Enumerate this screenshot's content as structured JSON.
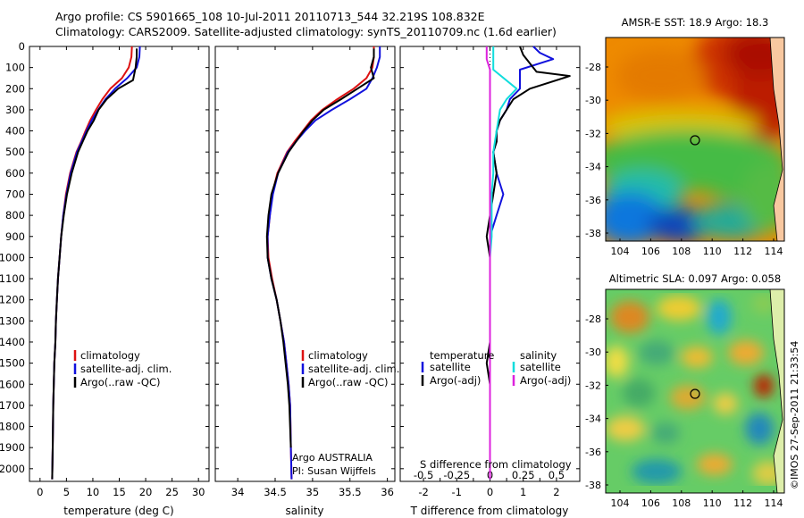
{
  "header": {
    "line1": "Argo profile: CS 5901665_108 10-Jul-2011 20110713_544 32.219S 108.832E",
    "line2": "Climatology: CARS2009. Satellite-adjusted climatology: synTS_20110709.nc (1.6d earlier)"
  },
  "colors": {
    "climatology": "#dd1111",
    "satellite": "#1111dd",
    "argo": "#000000",
    "cyan": "#11dddd",
    "magenta": "#dd22dd"
  },
  "depth_ticks": [
    "0",
    "100",
    "200",
    "300",
    "400",
    "500",
    "600",
    "700",
    "800",
    "900",
    "1000",
    "1100",
    "1200",
    "1300",
    "1400",
    "1500",
    "1600",
    "1700",
    "1800",
    "1900",
    "2000"
  ],
  "chart_data": [
    {
      "type": "line",
      "id": "temperature",
      "xlabel": "temperature (deg C)",
      "xticks": [
        0,
        5,
        10,
        15,
        20,
        25,
        30
      ],
      "xlim": [
        -2,
        32
      ],
      "ylim": [
        2060,
        0
      ],
      "legend": [
        "climatology",
        "satellite-adj. clim.",
        "Argo(..raw -QC)"
      ],
      "series": [
        {
          "name": "climatology",
          "color": "#dd1111",
          "x": [
            17.4,
            17.3,
            16.8,
            15.5,
            13.3,
            11.8,
            10.6,
            9.5,
            8.6,
            7.8,
            6.9,
            5.7,
            4.9,
            4.4,
            4.0,
            3.7,
            3.4,
            3.2,
            3.0,
            2.9,
            2.7,
            2.6,
            2.5,
            2.4,
            2.3
          ],
          "y": [
            0,
            50,
            100,
            150,
            200,
            250,
            300,
            350,
            400,
            450,
            500,
            600,
            700,
            800,
            900,
            1000,
            1100,
            1200,
            1300,
            1400,
            1500,
            1600,
            1700,
            1900,
            2050
          ]
        },
        {
          "name": "satellite-adj. clim.",
          "color": "#1111dd",
          "x": [
            18.9,
            18.8,
            18.3,
            16.5,
            14.2,
            12.4,
            11.0,
            9.8,
            8.8,
            7.9,
            7.0,
            5.8,
            5.0,
            4.4,
            4.0,
            3.7,
            3.4,
            3.2,
            3.0,
            2.9,
            2.7,
            2.6,
            2.5,
            2.4,
            2.3
          ],
          "y": [
            0,
            50,
            100,
            150,
            200,
            250,
            300,
            350,
            400,
            450,
            500,
            600,
            700,
            800,
            900,
            1000,
            1100,
            1200,
            1300,
            1400,
            1500,
            1600,
            1700,
            1900,
            2050
          ]
        },
        {
          "name": "Argo(..raw -QC)",
          "color": "#000000",
          "x": [
            18.3,
            18.3,
            18.1,
            17.6,
            14.8,
            12.6,
            11.1,
            10.2,
            9.0,
            8.1,
            7.2,
            6.0,
            5.1,
            4.5,
            4.0,
            3.7,
            3.4,
            3.2,
            3.0,
            2.9,
            2.7,
            2.6,
            2.5,
            2.4,
            2.3
          ],
          "y": [
            10,
            50,
            100,
            160,
            200,
            250,
            300,
            350,
            400,
            450,
            500,
            600,
            700,
            800,
            900,
            1000,
            1100,
            1200,
            1300,
            1400,
            1500,
            1600,
            1700,
            1900,
            2050
          ]
        }
      ]
    },
    {
      "type": "line",
      "id": "salinity",
      "xlabel": "salinity",
      "xticks": [
        34,
        34.5,
        35,
        35.5,
        36
      ],
      "xlim": [
        33.7,
        36.1
      ],
      "ylim": [
        2060,
        0
      ],
      "legend": [
        "climatology",
        "satellite-adj. clim.",
        "Argo(..raw -QC)"
      ],
      "notes": [
        "Argo AUSTRALIA",
        "PI: Susan Wijffels"
      ],
      "series": [
        {
          "name": "climatology",
          "color": "#dd1111",
          "x": [
            35.82,
            35.82,
            35.8,
            35.72,
            35.55,
            35.33,
            35.13,
            34.98,
            34.87,
            34.76,
            34.66,
            34.53,
            34.46,
            34.43,
            34.4,
            34.41,
            34.46,
            34.52,
            34.57,
            34.62,
            34.65,
            34.68,
            34.7,
            34.71,
            34.72
          ],
          "y": [
            0,
            50,
            100,
            150,
            200,
            250,
            300,
            350,
            400,
            450,
            500,
            600,
            700,
            800,
            900,
            1000,
            1100,
            1200,
            1300,
            1400,
            1500,
            1600,
            1700,
            1900,
            2050
          ]
        },
        {
          "name": "satellite-adj. clim.",
          "color": "#1111dd",
          "x": [
            35.9,
            35.9,
            35.86,
            35.8,
            35.72,
            35.5,
            35.26,
            35.04,
            34.9,
            34.78,
            34.67,
            34.54,
            34.47,
            34.43,
            34.4,
            34.4,
            34.45,
            34.52,
            34.57,
            34.62,
            34.65,
            34.68,
            34.7,
            34.71,
            34.72
          ],
          "y": [
            0,
            50,
            100,
            150,
            200,
            250,
            300,
            350,
            400,
            450,
            500,
            600,
            700,
            800,
            900,
            1000,
            1100,
            1200,
            1300,
            1400,
            1500,
            1600,
            1700,
            1900,
            2050
          ]
        },
        {
          "name": "Argo(..raw -QC)",
          "color": "#000000",
          "x": [
            35.82,
            35.82,
            35.78,
            35.82,
            35.6,
            35.38,
            35.15,
            35.0,
            34.88,
            34.78,
            34.68,
            34.54,
            34.45,
            34.41,
            34.39,
            34.4,
            34.45,
            34.52,
            34.57,
            34.61,
            34.64,
            34.67,
            34.69,
            34.71
          ],
          "y": [
            10,
            50,
            100,
            150,
            200,
            250,
            300,
            350,
            400,
            450,
            500,
            600,
            700,
            800,
            900,
            1000,
            1100,
            1200,
            1300,
            1400,
            1500,
            1600,
            1700,
            1900
          ]
        }
      ]
    },
    {
      "type": "line",
      "id": "difference",
      "xlabel": "T difference from climatology",
      "xlabel_top": "S difference from climatology",
      "xticks": [
        -2,
        -1.5,
        -1,
        -0.5,
        0,
        0.5,
        1,
        1.5,
        2
      ],
      "xticklabels": [
        "-2",
        "",
        "-1",
        "",
        "0",
        "",
        "1",
        "",
        "2"
      ],
      "sticks": [
        -0.5,
        -0.25,
        0,
        0.25,
        0.5
      ],
      "sticklabels": [
        "-0.5",
        "-0.25",
        "0",
        "0.25",
        "0.5"
      ],
      "xlim": [
        -2.7,
        2.7
      ],
      "ylim": [
        2060,
        0
      ],
      "legend_titles": [
        "temperature",
        "salinity"
      ],
      "legend": [
        "satellite",
        "Argo(-adj)",
        "satellite",
        "Argo(-adj)"
      ],
      "series": [
        {
          "name": "satellite",
          "group": "temperature",
          "color": "#1111dd",
          "x": [
            1.3,
            1.5,
            1.9,
            0.9,
            0.9,
            0.6,
            0.5,
            0.3,
            0.2,
            0.2,
            0.1,
            0.2,
            0.4,
            0.2,
            0.0,
            0.0,
            0.0,
            0.0,
            0.0,
            0.0,
            0.0,
            0.0,
            0.0,
            0.0
          ],
          "y": [
            0,
            30,
            60,
            110,
            200,
            250,
            300,
            350,
            400,
            450,
            500,
            600,
            700,
            800,
            900,
            1000,
            1100,
            1200,
            1300,
            1400,
            1500,
            1600,
            1700,
            2050
          ]
        },
        {
          "name": "Argo(-adj)",
          "group": "temperature",
          "color": "#000000",
          "x": [
            0.9,
            1.0,
            1.4,
            2.4,
            1.2,
            0.7,
            0.5,
            0.3,
            0.2,
            0.2,
            0.1,
            0.2,
            0.1,
            0.0,
            -0.1,
            0.0,
            0.0,
            0.0,
            0.0,
            0.0,
            -0.1,
            0.0,
            0.0,
            0.0
          ],
          "y": [
            0,
            40,
            120,
            140,
            200,
            250,
            300,
            350,
            400,
            450,
            500,
            600,
            700,
            800,
            900,
            1000,
            1100,
            1200,
            1300,
            1400,
            1500,
            1600,
            1700,
            2050
          ]
        },
        {
          "name": "satellite",
          "group": "salinity",
          "color": "#11dddd",
          "x": [
            0.1,
            0.1,
            0.1,
            0.8,
            0.5,
            0.3,
            0.2,
            0.1,
            0.1,
            0.05,
            0.05,
            0.05,
            0.0,
            0.0,
            0.0,
            0.0,
            0.0,
            0.0
          ],
          "y": [
            0,
            60,
            110,
            200,
            250,
            300,
            400,
            500,
            600,
            700,
            800,
            900,
            1000,
            1100,
            1200,
            1400,
            1700,
            2050
          ]
        },
        {
          "name": "Argo(-adj)",
          "group": "salinity",
          "color": "#dd22dd",
          "x": [
            -0.1,
            -0.1,
            0.0,
            0.0,
            0.0,
            0.0,
            0.0,
            0.0,
            0.0,
            0.0,
            0.0
          ],
          "y": [
            0,
            60,
            110,
            250,
            400,
            600,
            800,
            1000,
            1300,
            1700,
            2050
          ]
        }
      ]
    }
  ],
  "maps": [
    {
      "id": "sst",
      "title": "AMSR-E SST: 18.9 Argo: 18.3",
      "lon_ticks": [
        "104",
        "106",
        "108",
        "110",
        "112",
        "114"
      ],
      "lat_ticks": [
        "-28",
        "-30",
        "-32",
        "-34",
        "-36",
        "-38"
      ]
    },
    {
      "id": "sla",
      "title": "Altimetric SLA: 0.097 Argo: 0.058",
      "lon_ticks": [
        "104",
        "106",
        "108",
        "110",
        "112",
        "114"
      ],
      "lat_ticks": [
        "-28",
        "-30",
        "-32",
        "-34",
        "-36",
        "-38"
      ]
    }
  ],
  "footer": "©IMOS 27-Sep-2011 21:33:54"
}
